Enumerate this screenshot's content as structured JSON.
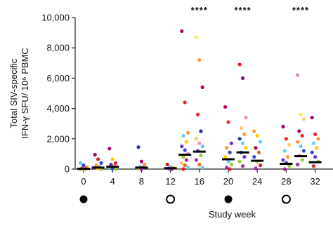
{
  "chart_data": {
    "type": "scatter",
    "ylabel_lines": [
      "Total SIV-specific",
      "IFN-γ SFU/ 10⁶ PBMC"
    ],
    "xlabel": "Study week",
    "ylim": [
      0,
      10000
    ],
    "xlim": [
      -1,
      33
    ],
    "yticks": [
      0,
      2000,
      4000,
      6000,
      8000,
      10000
    ],
    "ytick_labels": [
      "0",
      "2,000",
      "4,000",
      "6,000",
      "8,000",
      "10,000"
    ],
    "xticks": [
      0,
      4,
      8,
      12,
      16,
      20,
      24,
      28,
      32
    ],
    "xtick_labels": [
      "0",
      "4",
      "8",
      "12",
      "16",
      "20",
      "24",
      "28",
      "32"
    ],
    "significance": [
      {
        "x": 16,
        "label": "****"
      },
      {
        "x": 22,
        "label": "****"
      },
      {
        "x": 30,
        "label": "****"
      }
    ],
    "markers": [
      {
        "x": 0,
        "style": "filled"
      },
      {
        "x": 12,
        "style": "open"
      },
      {
        "x": 20,
        "style": "filled"
      },
      {
        "x": 28,
        "style": "open"
      }
    ],
    "medians": [
      {
        "x": 0,
        "y": 20
      },
      {
        "x": 2,
        "y": 100
      },
      {
        "x": 4,
        "y": 150
      },
      {
        "x": 8,
        "y": 100
      },
      {
        "x": 12,
        "y": 60
      },
      {
        "x": 14,
        "y": 950
      },
      {
        "x": 16,
        "y": 1150
      },
      {
        "x": 20,
        "y": 650
      },
      {
        "x": 22,
        "y": 1100
      },
      {
        "x": 24,
        "y": 550
      },
      {
        "x": 28,
        "y": 350
      },
      {
        "x": 30,
        "y": 850
      },
      {
        "x": 32,
        "y": 450
      }
    ],
    "groups": [
      {
        "x": 0,
        "points": [
          {
            "y": 400,
            "color": "#66ccff"
          },
          {
            "y": 250,
            "color": "#3344dd"
          },
          {
            "y": 120,
            "color": "#ff9933"
          },
          {
            "y": 60,
            "color": "#aa22aa"
          },
          {
            "y": 20,
            "color": "#ee2244"
          },
          {
            "y": 0,
            "color": "#99cc33"
          },
          {
            "y": 0,
            "color": "#ffcc00"
          }
        ]
      },
      {
        "x": 2,
        "points": [
          {
            "y": 950,
            "color": "#aa0066"
          },
          {
            "y": 650,
            "color": "#dd2222"
          },
          {
            "y": 400,
            "color": "#3344dd"
          },
          {
            "y": 250,
            "color": "#ff9933"
          },
          {
            "y": 150,
            "color": "#66ccff"
          },
          {
            "y": 80,
            "color": "#aa22aa"
          },
          {
            "y": 30,
            "color": "#ffcc00"
          },
          {
            "y": 0,
            "color": "#99cc33"
          }
        ]
      },
      {
        "x": 4,
        "points": [
          {
            "y": 1350,
            "color": "#aa0066"
          },
          {
            "y": 650,
            "color": "#ffcc00"
          },
          {
            "y": 400,
            "color": "#dd2222"
          },
          {
            "y": 300,
            "color": "#6633cc"
          },
          {
            "y": 200,
            "color": "#ff9933"
          },
          {
            "y": 100,
            "color": "#66ccff"
          },
          {
            "y": 30,
            "color": "#3344dd"
          },
          {
            "y": 0,
            "color": "#99cc33"
          }
        ]
      },
      {
        "x": 8,
        "points": [
          {
            "y": 1450,
            "color": "#2233aa"
          },
          {
            "y": 500,
            "color": "#aa0066"
          },
          {
            "y": 300,
            "color": "#ff9933"
          },
          {
            "y": 150,
            "color": "#66ccff"
          },
          {
            "y": 80,
            "color": "#dd2222"
          },
          {
            "y": 20,
            "color": "#99cc33"
          },
          {
            "y": 0,
            "color": "#aa22aa"
          }
        ]
      },
      {
        "x": 12,
        "points": [
          {
            "y": 300,
            "color": "#dd2222"
          },
          {
            "y": 150,
            "color": "#66ccff"
          },
          {
            "y": 80,
            "color": "#ff9933"
          },
          {
            "y": 30,
            "color": "#3344dd"
          },
          {
            "y": 0,
            "color": "#aa22aa"
          }
        ]
      },
      {
        "x": 14,
        "points": [
          {
            "y": 9100,
            "color": "#aa0066"
          },
          {
            "y": 4400,
            "color": "#ee2222"
          },
          {
            "y": 2400,
            "color": "#ff9933"
          },
          {
            "y": 2200,
            "color": "#66ccff"
          },
          {
            "y": 1800,
            "color": "#ffcc00"
          },
          {
            "y": 1500,
            "color": "#6633cc"
          },
          {
            "y": 1250,
            "color": "#3344dd"
          },
          {
            "y": 1000,
            "color": "#ff88bb"
          },
          {
            "y": 800,
            "color": "#99cc33"
          },
          {
            "y": 600,
            "color": "#aa22aa"
          },
          {
            "y": 400,
            "color": "#ffcc66"
          },
          {
            "y": 250,
            "color": "#ee6622"
          },
          {
            "y": 100,
            "color": "#66ccff"
          },
          {
            "y": 0,
            "color": "#dd2222"
          }
        ]
      },
      {
        "x": 16,
        "points": [
          {
            "y": 8700,
            "color": "#ffee33"
          },
          {
            "y": 7200,
            "color": "#ff9933"
          },
          {
            "y": 5400,
            "color": "#aa0066"
          },
          {
            "y": 3600,
            "color": "#ee2222"
          },
          {
            "y": 2500,
            "color": "#2233aa"
          },
          {
            "y": 2000,
            "color": "#ffcc66"
          },
          {
            "y": 1700,
            "color": "#ff88bb"
          },
          {
            "y": 1500,
            "color": "#66ccff"
          },
          {
            "y": 1200,
            "color": "#3344dd"
          },
          {
            "y": 900,
            "color": "#99cc33"
          },
          {
            "y": 600,
            "color": "#aa22aa"
          },
          {
            "y": 300,
            "color": "#ee6622"
          },
          {
            "y": 100,
            "color": "#66ccff"
          }
        ]
      },
      {
        "x": 20,
        "points": [
          {
            "y": 4100,
            "color": "#aa0066"
          },
          {
            "y": 3100,
            "color": "#ee2222"
          },
          {
            "y": 1700,
            "color": "#6633cc"
          },
          {
            "y": 1400,
            "color": "#ff9933"
          },
          {
            "y": 1100,
            "color": "#3344dd"
          },
          {
            "y": 800,
            "color": "#ffcc00"
          },
          {
            "y": 500,
            "color": "#66ccff"
          },
          {
            "y": 300,
            "color": "#99cc33"
          },
          {
            "y": 100,
            "color": "#aa22aa"
          },
          {
            "y": 0,
            "color": "#dd2222"
          }
        ]
      },
      {
        "x": 22,
        "points": [
          {
            "y": 6900,
            "color": "#ee2222"
          },
          {
            "y": 6000,
            "color": "#aa0066"
          },
          {
            "y": 3400,
            "color": "#ff88bb"
          },
          {
            "y": 2700,
            "color": "#ffcc66"
          },
          {
            "y": 2300,
            "color": "#ff9933"
          },
          {
            "y": 2000,
            "color": "#2233aa"
          },
          {
            "y": 1700,
            "color": "#66ccff"
          },
          {
            "y": 1400,
            "color": "#ffcc00"
          },
          {
            "y": 1100,
            "color": "#3344dd"
          },
          {
            "y": 800,
            "color": "#6633cc"
          },
          {
            "y": 500,
            "color": "#99cc33"
          },
          {
            "y": 200,
            "color": "#aa22aa"
          }
        ]
      },
      {
        "x": 24,
        "points": [
          {
            "y": 2500,
            "color": "#ff9933"
          },
          {
            "y": 2200,
            "color": "#ffcc00"
          },
          {
            "y": 1800,
            "color": "#66ccff"
          },
          {
            "y": 1400,
            "color": "#aa0066"
          },
          {
            "y": 1100,
            "color": "#ee6622"
          },
          {
            "y": 800,
            "color": "#3344dd"
          },
          {
            "y": 500,
            "color": "#99cc33"
          },
          {
            "y": 250,
            "color": "#dd2222"
          },
          {
            "y": 50,
            "color": "#aa22aa"
          }
        ]
      },
      {
        "x": 28,
        "points": [
          {
            "y": 2800,
            "color": "#aa0066"
          },
          {
            "y": 2000,
            "color": "#ee2222"
          },
          {
            "y": 1600,
            "color": "#ffcc66"
          },
          {
            "y": 1200,
            "color": "#66ccff"
          },
          {
            "y": 800,
            "color": "#ff9933"
          },
          {
            "y": 600,
            "color": "#6633cc"
          },
          {
            "y": 400,
            "color": "#3344dd"
          },
          {
            "y": 200,
            "color": "#99cc33"
          },
          {
            "y": 0,
            "color": "#aa22aa"
          }
        ]
      },
      {
        "x": 30,
        "points": [
          {
            "y": 6200,
            "color": "#cc88cc"
          },
          {
            "y": 3600,
            "color": "#ffee33"
          },
          {
            "y": 3300,
            "color": "#ffcc66"
          },
          {
            "y": 2500,
            "color": "#aa0066"
          },
          {
            "y": 2200,
            "color": "#ee2222"
          },
          {
            "y": 1800,
            "color": "#ff9933"
          },
          {
            "y": 1500,
            "color": "#66ccff"
          },
          {
            "y": 1200,
            "color": "#3344dd"
          },
          {
            "y": 900,
            "color": "#ff88bb"
          },
          {
            "y": 600,
            "color": "#99cc33"
          },
          {
            "y": 300,
            "color": "#aa22aa"
          }
        ]
      },
      {
        "x": 32,
        "points": [
          {
            "y": 3400,
            "color": "#aa0066"
          },
          {
            "y": 2300,
            "color": "#ee2222"
          },
          {
            "y": 2000,
            "color": "#ff9933"
          },
          {
            "y": 1700,
            "color": "#66ccff"
          },
          {
            "y": 1400,
            "color": "#ffcc00"
          },
          {
            "y": 1100,
            "color": "#3344dd"
          },
          {
            "y": 800,
            "color": "#6633cc"
          },
          {
            "y": 500,
            "color": "#99cc33"
          },
          {
            "y": 200,
            "color": "#dd2222"
          }
        ]
      }
    ]
  }
}
